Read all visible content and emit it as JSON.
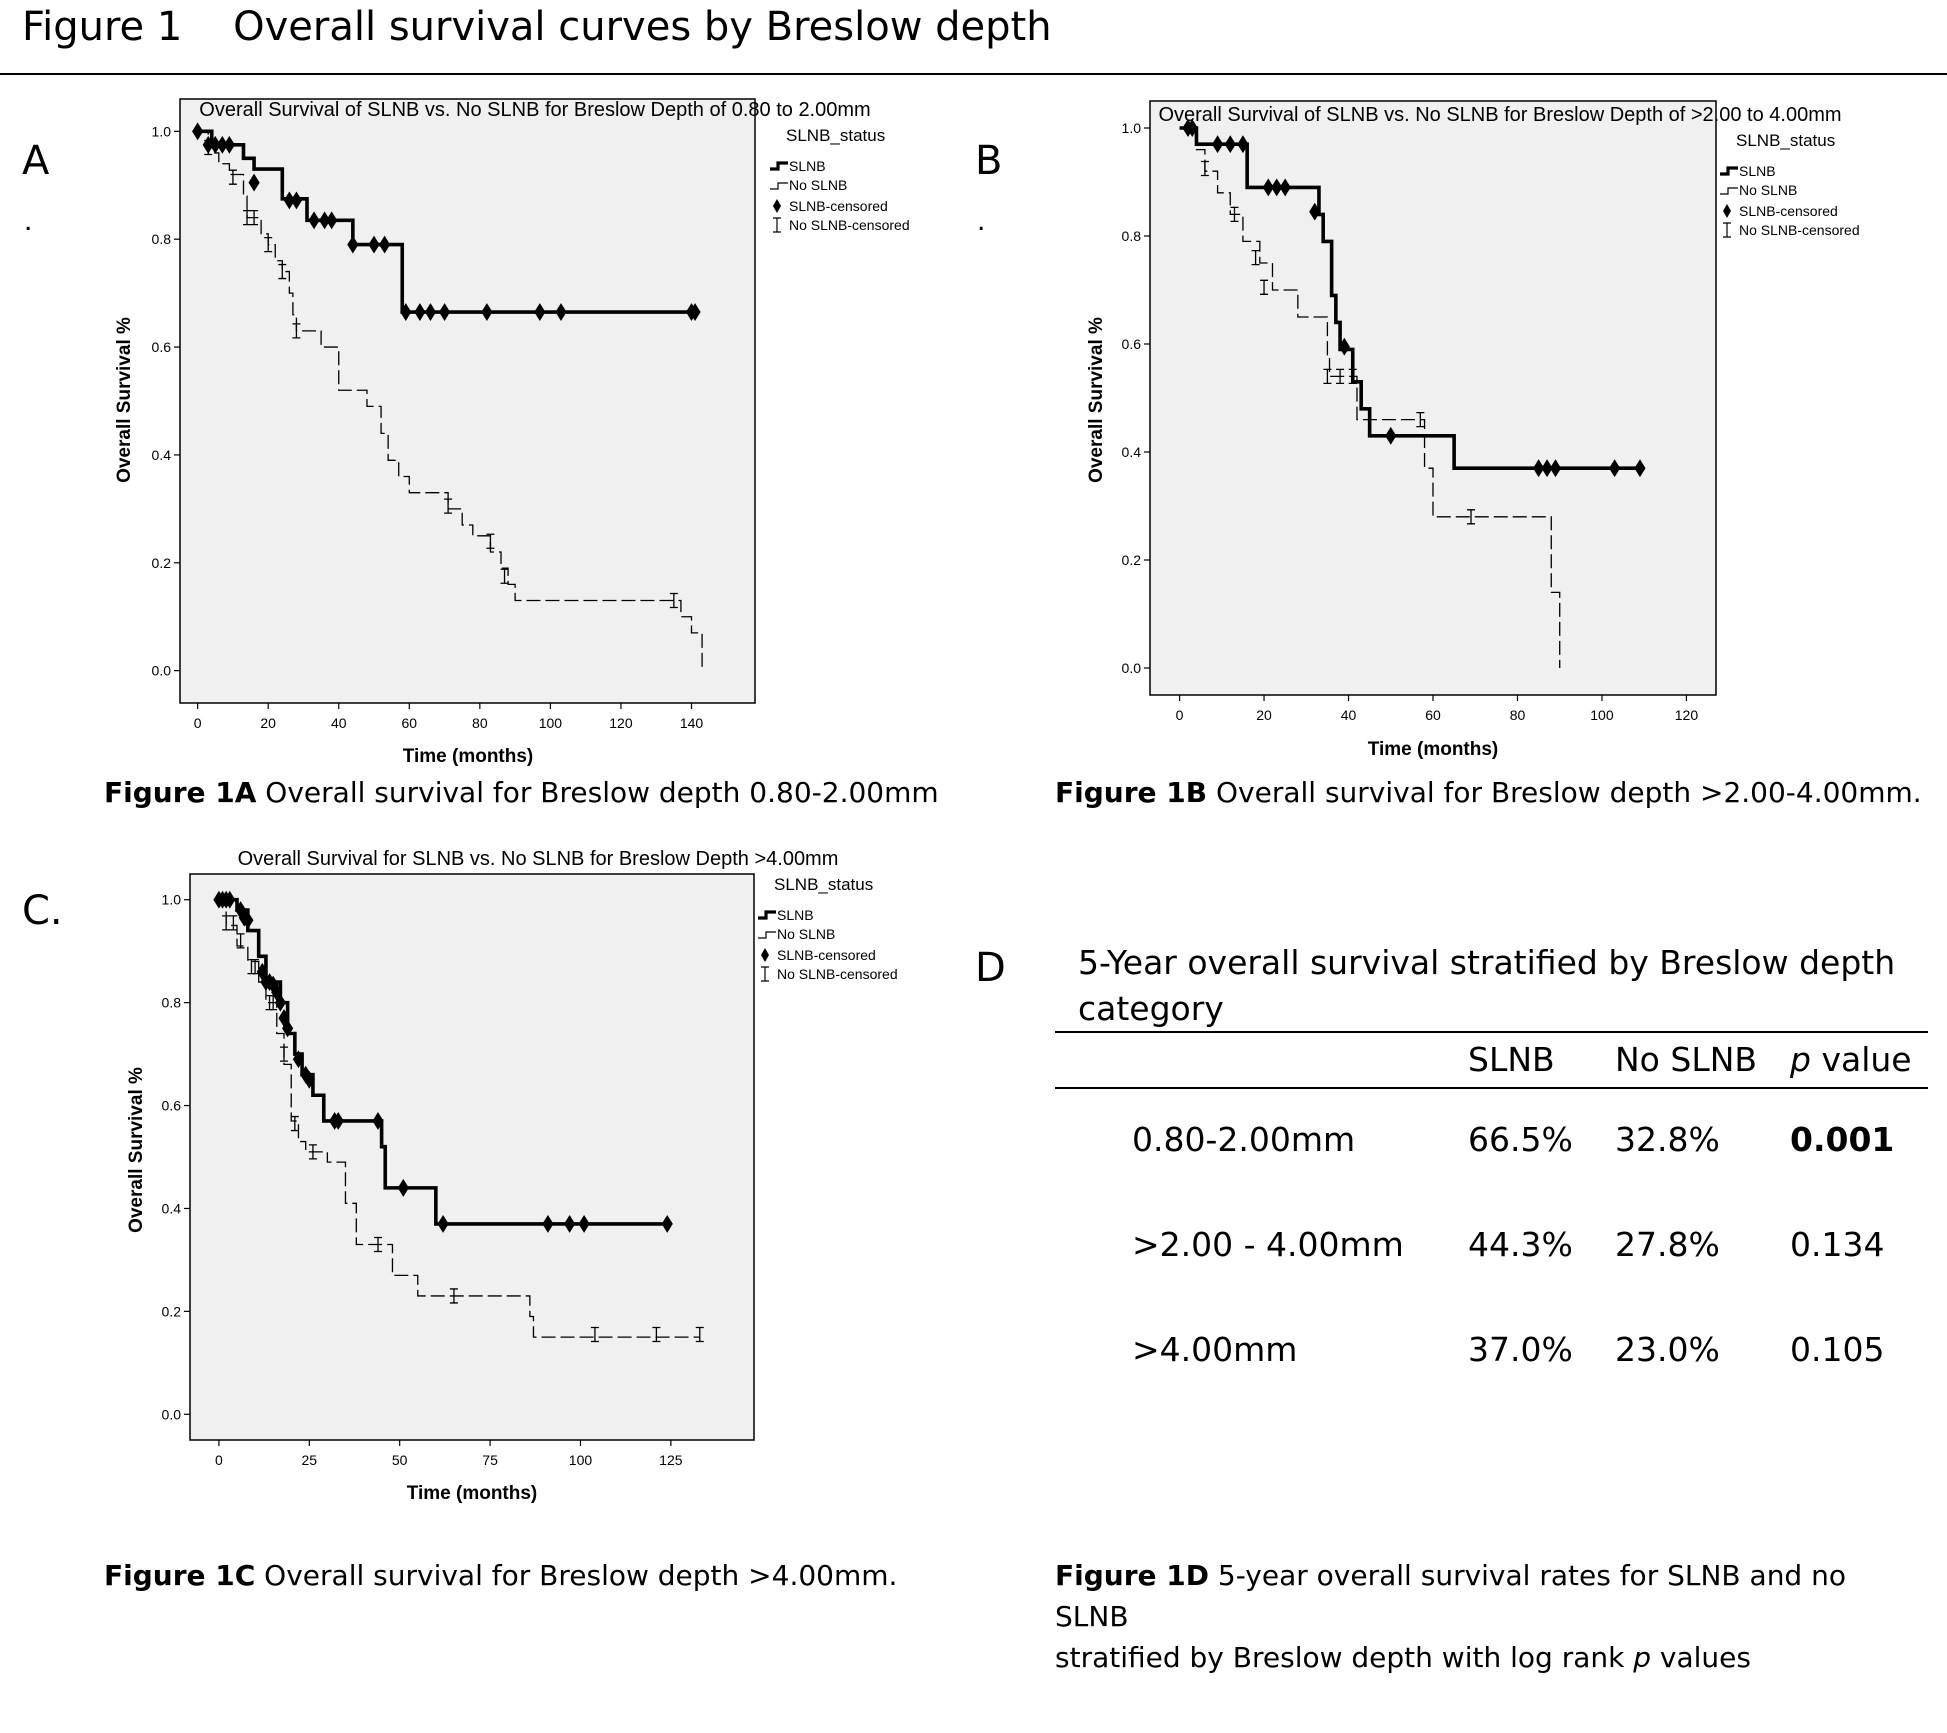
{
  "page": {
    "title": "Figure 1    Overall survival curves by Breslow depth",
    "panel_labels": [
      "A",
      "B",
      "C.",
      "D"
    ]
  },
  "captions": {
    "a_bold": "Figure 1A",
    "a_text": " Overall survival for Breslow depth 0.80-2.00mm",
    "b_bold": "Figure 1B",
    "b_text": " Overall survival for Breslow depth >2.00-4.00mm.",
    "c_bold": "Figure 1C",
    "c_text": " Overall survival for Breslow depth >4.00mm.",
    "d_bold": "Figure 1D",
    "d_text1": " 5-year overall survival rates for SLNB and no SLNB",
    "d_text2a": "stratified by Breslow depth with log rank ",
    "d_text2b": "p",
    "d_text2c": " values"
  },
  "table": {
    "title": "5-Year overall survival stratified by Breslow depth category",
    "headers": [
      "",
      "SLNB",
      "No SLNB",
      "p value"
    ],
    "rows": [
      {
        "depth": "0.80-2.00mm",
        "slnb": "66.5%",
        "no_slnb": "32.8%",
        "p": "0.001",
        "p_bold": true
      },
      {
        "depth": ">2.00 - 4.00mm",
        "slnb": "44.3%",
        "no_slnb": "27.8%",
        "p": "0.134",
        "p_bold": false
      },
      {
        "depth": ">4.00mm",
        "slnb": "37.0%",
        "no_slnb": "23.0%",
        "p": "0.105",
        "p_bold": false
      }
    ]
  },
  "chart_data": [
    {
      "id": "A",
      "type": "line",
      "title": "Overall Survival of SLNB vs. No SLNB for Breslow Depth of 0.80 to 2.00mm",
      "xlabel": "Time (months)",
      "ylabel": "Overall Survival %",
      "xlim": [
        -5,
        158
      ],
      "ylim": [
        -0.06,
        1.06
      ],
      "xticks": [
        0,
        20,
        40,
        60,
        80,
        100,
        120,
        140
      ],
      "yticks": [
        0.0,
        0.2,
        0.4,
        0.6,
        0.8,
        1.0
      ],
      "ytick_labels": [
        "0.0",
        "0.2",
        "0.4",
        "0.6",
        "0.8",
        "1.0"
      ],
      "legend_title": "SLNB_status",
      "legend": [
        "SLNB",
        "No SLNB",
        "SLNB-censored",
        "No SLNB-censored"
      ],
      "series": [
        {
          "name": "SLNB",
          "style": "solid",
          "steps": [
            [
              0,
              1.0
            ],
            [
              4,
              0.975
            ],
            [
              13,
              0.95
            ],
            [
              16,
              0.93
            ],
            [
              24,
              0.875
            ],
            [
              31,
              0.835
            ],
            [
              44,
              0.79
            ],
            [
              58,
              0.665
            ],
            [
              142,
              0.665
            ]
          ],
          "censored": [
            [
              0,
              1.0
            ],
            [
              3,
              0.975
            ],
            [
              5,
              0.975
            ],
            [
              7,
              0.975
            ],
            [
              9,
              0.975
            ],
            [
              16,
              0.905
            ],
            [
              26,
              0.872
            ],
            [
              28,
              0.872
            ],
            [
              33,
              0.835
            ],
            [
              36,
              0.835
            ],
            [
              38,
              0.835
            ],
            [
              44,
              0.79
            ],
            [
              50,
              0.79
            ],
            [
              53,
              0.79
            ],
            [
              59,
              0.665
            ],
            [
              63,
              0.665
            ],
            [
              66,
              0.665
            ],
            [
              70,
              0.665
            ],
            [
              82,
              0.665
            ],
            [
              97,
              0.665
            ],
            [
              103,
              0.665
            ],
            [
              141,
              0.665
            ],
            [
              140,
              0.665
            ]
          ]
        },
        {
          "name": "No SLNB",
          "style": "dashed",
          "steps": [
            [
              0,
              1.0
            ],
            [
              3,
              0.96
            ],
            [
              6,
              0.94
            ],
            [
              9,
              0.92
            ],
            [
              13,
              0.88
            ],
            [
              14,
              0.84
            ],
            [
              18,
              0.81
            ],
            [
              20,
              0.79
            ],
            [
              22,
              0.76
            ],
            [
              24,
              0.74
            ],
            [
              26,
              0.7
            ],
            [
              27,
              0.66
            ],
            [
              28,
              0.63
            ],
            [
              35,
              0.6
            ],
            [
              40,
              0.52
            ],
            [
              48,
              0.49
            ],
            [
              52,
              0.44
            ],
            [
              54,
              0.39
            ],
            [
              57,
              0.36
            ],
            [
              60,
              0.33
            ],
            [
              71,
              0.3
            ],
            [
              75,
              0.27
            ],
            [
              78,
              0.25
            ],
            [
              83,
              0.22
            ],
            [
              86,
              0.19
            ],
            [
              88,
              0.16
            ],
            [
              90,
              0.13
            ],
            [
              137,
              0.1
            ],
            [
              140,
              0.07
            ],
            [
              143,
              0.0
            ]
          ],
          "censored": [
            [
              3,
              0.97
            ],
            [
              10,
              0.915
            ],
            [
              14,
              0.84
            ],
            [
              16,
              0.84
            ],
            [
              20,
              0.79
            ],
            [
              24,
              0.74
            ],
            [
              28,
              0.63
            ],
            [
              71,
              0.305
            ],
            [
              83,
              0.24
            ],
            [
              87,
              0.175
            ],
            [
              135,
              0.13
            ]
          ]
        }
      ]
    },
    {
      "id": "B",
      "type": "line",
      "title": "Overall Survival of SLNB vs. No SLNB for Breslow Depth of >2.00 to 4.00mm",
      "xlabel": "Time (months)",
      "ylabel": "Overall Survival %",
      "xlim": [
        -7,
        127
      ],
      "ylim": [
        -0.05,
        1.05
      ],
      "xticks": [
        0,
        20,
        40,
        60,
        80,
        100,
        120
      ],
      "yticks": [
        0.0,
        0.2,
        0.4,
        0.6,
        0.8,
        1.0
      ],
      "ytick_labels": [
        "0.0",
        "0.2",
        "0.4",
        "0.6",
        "0.8",
        "1.0"
      ],
      "legend_title": "SLNB_status",
      "legend": [
        "SLNB",
        "No SLNB",
        "SLNB-censored",
        "No SLNB-censored"
      ],
      "series": [
        {
          "name": "SLNB",
          "style": "solid",
          "steps": [
            [
              0,
              1.0
            ],
            [
              4,
              0.97
            ],
            [
              16,
              0.89
            ],
            [
              33,
              0.84
            ],
            [
              34,
              0.79
            ],
            [
              36,
              0.69
            ],
            [
              37,
              0.64
            ],
            [
              38,
              0.59
            ],
            [
              41,
              0.53
            ],
            [
              43,
              0.48
            ],
            [
              45,
              0.43
            ],
            [
              65,
              0.37
            ],
            [
              110,
              0.37
            ]
          ],
          "censored": [
            [
              2,
              1.0
            ],
            [
              3,
              1.0
            ],
            [
              9,
              0.97
            ],
            [
              12,
              0.97
            ],
            [
              15,
              0.97
            ],
            [
              21,
              0.89
            ],
            [
              23,
              0.89
            ],
            [
              25,
              0.89
            ],
            [
              32,
              0.845
            ],
            [
              39,
              0.595
            ],
            [
              50,
              0.43
            ],
            [
              85,
              0.37
            ],
            [
              87,
              0.37
            ],
            [
              89,
              0.37
            ],
            [
              103,
              0.37
            ],
            [
              109,
              0.37
            ]
          ]
        },
        {
          "name": "No SLNB",
          "style": "dashed",
          "steps": [
            [
              0,
              1.0
            ],
            [
              4,
              0.96
            ],
            [
              6,
              0.92
            ],
            [
              9,
              0.88
            ],
            [
              12,
              0.84
            ],
            [
              15,
              0.79
            ],
            [
              19,
              0.75
            ],
            [
              22,
              0.7
            ],
            [
              28,
              0.65
            ],
            [
              35,
              0.58
            ],
            [
              35.5,
              0.54
            ],
            [
              42,
              0.46
            ],
            [
              58,
              0.37
            ],
            [
              60,
              0.28
            ],
            [
              88,
              0.14
            ],
            [
              90,
              0.0
            ]
          ],
          "censored": [
            [
              6,
              0.925
            ],
            [
              13,
              0.84
            ],
            [
              18,
              0.76
            ],
            [
              20,
              0.705
            ],
            [
              35,
              0.54
            ],
            [
              38,
              0.54
            ],
            [
              41,
              0.54
            ],
            [
              57,
              0.46
            ],
            [
              69,
              0.28
            ]
          ]
        }
      ]
    },
    {
      "id": "C",
      "type": "line",
      "title": "Overall Survival for SLNB vs. No SLNB for Breslow Depth >4.00mm",
      "xlabel": "Time (months)",
      "ylabel": "Overall Survival %",
      "xlim": [
        -8,
        148
      ],
      "ylim": [
        -0.05,
        1.05
      ],
      "xticks": [
        0,
        25,
        50,
        75,
        100,
        125
      ],
      "yticks": [
        0.0,
        0.2,
        0.4,
        0.6,
        0.8,
        1.0
      ],
      "ytick_labels": [
        "0.0",
        "0.2",
        "0.4",
        "0.6",
        "0.8",
        "1.0"
      ],
      "legend_title": "SLNB_status",
      "legend": [
        "SLNB",
        "No SLNB",
        "SLNB-censored",
        "No SLNB-censored"
      ],
      "series": [
        {
          "name": "SLNB",
          "style": "solid",
          "steps": [
            [
              0,
              1.0
            ],
            [
              5,
              0.98
            ],
            [
              8,
              0.94
            ],
            [
              11,
              0.89
            ],
            [
              13,
              0.84
            ],
            [
              17,
              0.8
            ],
            [
              19,
              0.74
            ],
            [
              21,
              0.7
            ],
            [
              23,
              0.66
            ],
            [
              26,
              0.62
            ],
            [
              29,
              0.57
            ],
            [
              45,
              0.52
            ],
            [
              46,
              0.44
            ],
            [
              60,
              0.37
            ],
            [
              124,
              0.37
            ]
          ],
          "censored": [
            [
              0,
              1.0
            ],
            [
              1,
              1.0
            ],
            [
              2,
              1.0
            ],
            [
              3,
              1.0
            ],
            [
              6,
              0.98
            ],
            [
              7,
              0.965
            ],
            [
              8,
              0.96
            ],
            [
              12,
              0.86
            ],
            [
              13,
              0.84
            ],
            [
              14,
              0.84
            ],
            [
              15,
              0.835
            ],
            [
              16,
              0.82
            ],
            [
              17,
              0.8
            ],
            [
              18,
              0.77
            ],
            [
              19,
              0.75
            ],
            [
              22,
              0.69
            ],
            [
              24,
              0.66
            ],
            [
              25,
              0.65
            ],
            [
              32,
              0.57
            ],
            [
              33,
              0.57
            ],
            [
              44,
              0.57
            ],
            [
              51,
              0.44
            ],
            [
              62,
              0.37
            ],
            [
              91,
              0.37
            ],
            [
              97,
              0.37
            ],
            [
              101,
              0.37
            ],
            [
              124,
              0.37
            ]
          ]
        },
        {
          "name": "No SLNB",
          "style": "dashed",
          "steps": [
            [
              0,
              1.0
            ],
            [
              2,
              0.95
            ],
            [
              5,
              0.91
            ],
            [
              8,
              0.88
            ],
            [
              11,
              0.84
            ],
            [
              13,
              0.8
            ],
            [
              16,
              0.74
            ],
            [
              18,
              0.68
            ],
            [
              20,
              0.57
            ],
            [
              22,
              0.53
            ],
            [
              24,
              0.51
            ],
            [
              30,
              0.49
            ],
            [
              35,
              0.41
            ],
            [
              38,
              0.33
            ],
            [
              48,
              0.27
            ],
            [
              55,
              0.23
            ],
            [
              86,
              0.19
            ],
            [
              87,
              0.15
            ],
            [
              133,
              0.15
            ]
          ],
          "censored": [
            [
              2,
              0.955
            ],
            [
              4,
              0.955
            ],
            [
              6,
              0.92
            ],
            [
              9,
              0.87
            ],
            [
              10,
              0.87
            ],
            [
              14,
              0.8
            ],
            [
              15,
              0.8
            ],
            [
              18,
              0.7
            ],
            [
              21,
              0.565
            ],
            [
              26,
              0.51
            ],
            [
              44,
              0.33
            ],
            [
              65,
              0.23
            ],
            [
              104,
              0.155
            ],
            [
              121,
              0.155
            ],
            [
              133,
              0.155
            ]
          ]
        }
      ]
    }
  ]
}
